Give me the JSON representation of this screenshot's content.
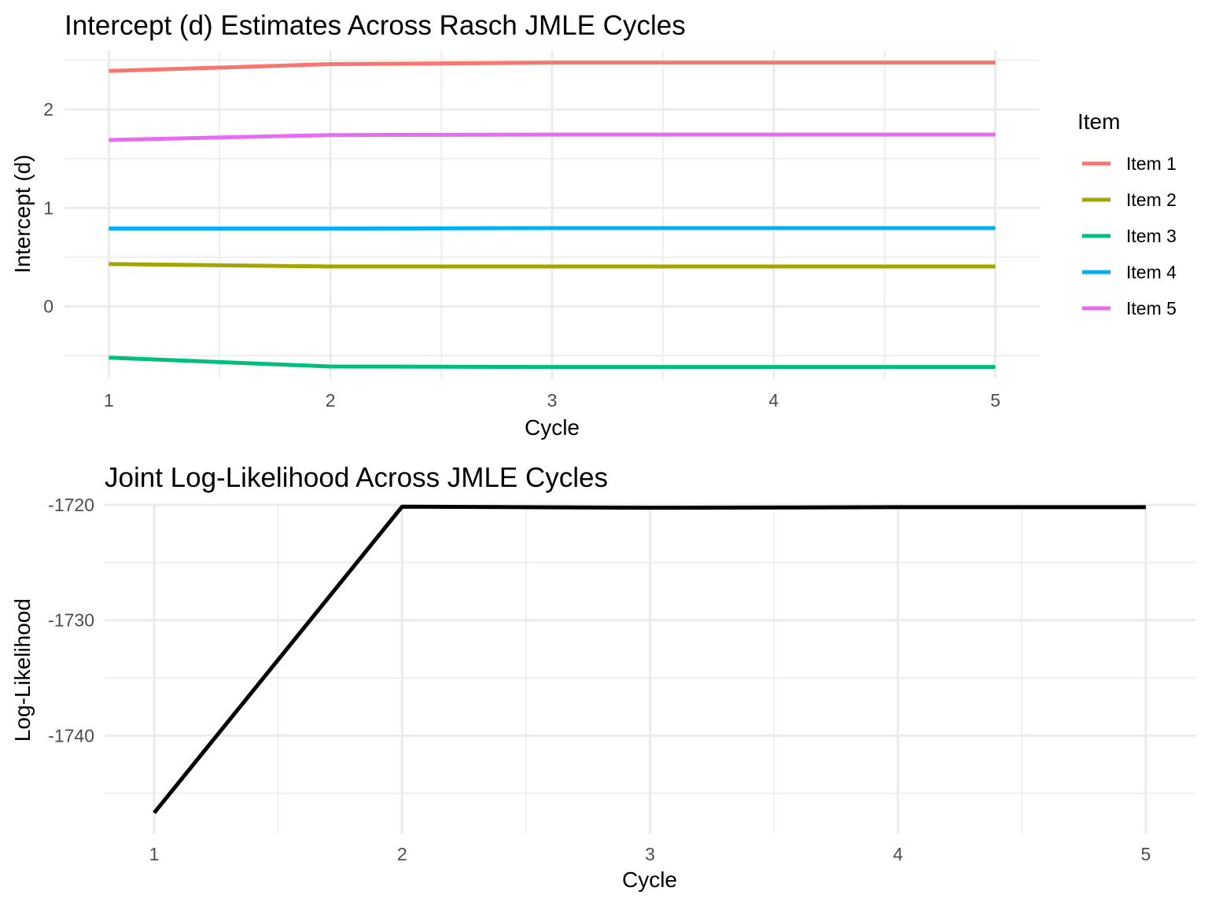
{
  "chart_data": [
    {
      "type": "line",
      "title": "Intercept (d) Estimates Across Rasch JMLE Cycles",
      "xlabel": "Cycle",
      "ylabel": "Intercept (d)",
      "x": [
        1,
        2,
        3,
        4,
        5
      ],
      "xlim": [
        0.8,
        5.2
      ],
      "ylim": [
        -0.73,
        2.6
      ],
      "x_ticks": [
        "1",
        "2",
        "3",
        "4",
        "5"
      ],
      "y_ticks": [
        {
          "value": 0,
          "label": "0"
        },
        {
          "value": 1,
          "label": "1"
        },
        {
          "value": 2,
          "label": "2"
        }
      ],
      "grid": true,
      "legend": {
        "title": "Item",
        "position": "right"
      },
      "series": [
        {
          "name": "Item 1",
          "color": "#F8766D",
          "values": [
            2.39,
            2.46,
            2.475,
            2.475,
            2.475
          ]
        },
        {
          "name": "Item 2",
          "color": "#A3A500",
          "values": [
            0.43,
            0.405,
            0.405,
            0.405,
            0.405
          ]
        },
        {
          "name": "Item 3",
          "color": "#00BF7D",
          "values": [
            -0.52,
            -0.61,
            -0.615,
            -0.615,
            -0.615
          ]
        },
        {
          "name": "Item 4",
          "color": "#00B0F6",
          "values": [
            0.79,
            0.79,
            0.795,
            0.795,
            0.795
          ]
        },
        {
          "name": "Item 5",
          "color": "#E76BF3",
          "values": [
            1.69,
            1.74,
            1.745,
            1.745,
            1.745
          ]
        }
      ]
    },
    {
      "type": "line",
      "title": "Joint Log-Likelihood Across JMLE Cycles",
      "xlabel": "Cycle",
      "ylabel": "Log-Likelihood",
      "x": [
        1,
        2,
        3,
        4,
        5
      ],
      "xlim": [
        0.8,
        5.2
      ],
      "ylim": [
        -1748.5,
        -1720.0
      ],
      "x_ticks": [
        "1",
        "2",
        "3",
        "4",
        "5"
      ],
      "y_ticks": [
        {
          "value": -1720,
          "label": "-1720"
        },
        {
          "value": -1730,
          "label": "-1730"
        },
        {
          "value": -1740,
          "label": "-1740"
        }
      ],
      "grid": true,
      "series": [
        {
          "name": "Log-Likelihood",
          "color": "#000000",
          "values": [
            -1746.7,
            -1720.15,
            -1720.25,
            -1720.2,
            -1720.2
          ]
        }
      ]
    }
  ]
}
